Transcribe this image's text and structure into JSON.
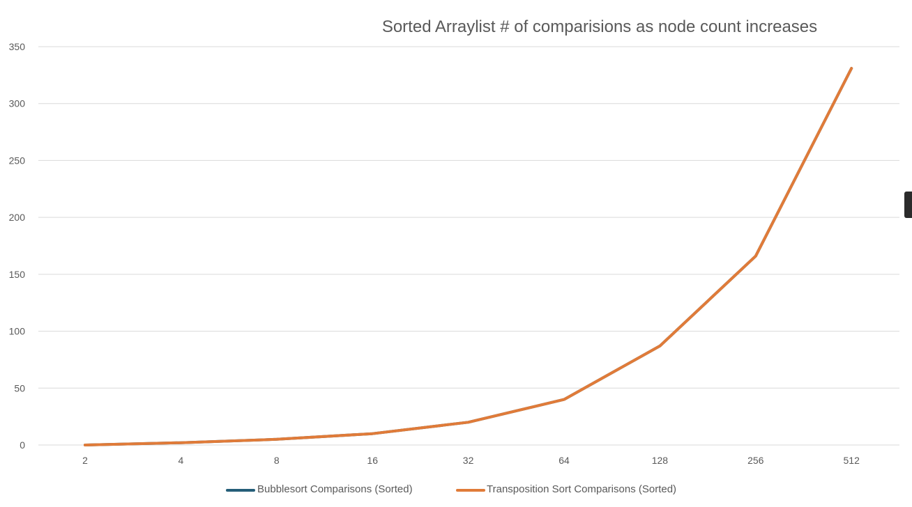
{
  "chart_data": {
    "type": "line",
    "title": "Sorted Arraylist # of comparisions as node count increases",
    "xlabel": "",
    "ylabel": "",
    "categories": [
      "2",
      "4",
      "8",
      "16",
      "32",
      "64",
      "128",
      "256",
      "512"
    ],
    "ylim": [
      0,
      350
    ],
    "yticks": [
      "0",
      "50",
      "100",
      "150",
      "200",
      "250",
      "300",
      "350"
    ],
    "grid": true,
    "legend_position": "bottom",
    "series": [
      {
        "name": "Bubblesort Comparisons (Sorted)",
        "color": "#255e79",
        "values": [
          0,
          2,
          5,
          10,
          20,
          40,
          87,
          166,
          331
        ]
      },
      {
        "name": "Transposition Sort Comparisons (Sorted)",
        "color": "#e07b39",
        "values": [
          0,
          2,
          5,
          10,
          20,
          40,
          87,
          166,
          331
        ]
      }
    ]
  }
}
